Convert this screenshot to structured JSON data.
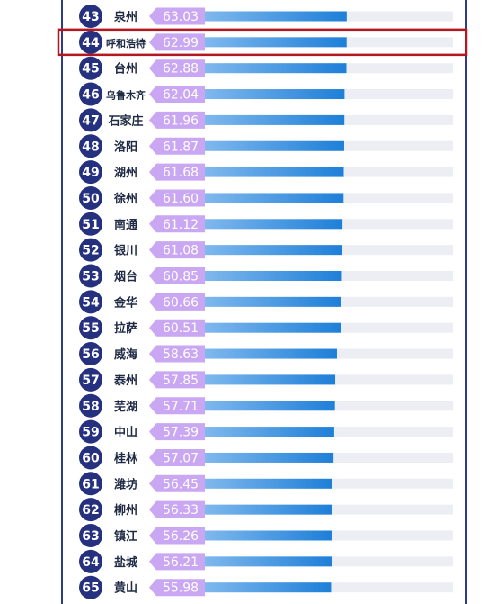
{
  "colors": {
    "frame": "#2e3a8c",
    "rank_badge": "#25307e",
    "value_tag": "#c9a7f2",
    "bar_start": "#7fb8ee",
    "bar_end": "#1e7fd8",
    "track": "#eceef3",
    "highlight_box": "#b3171f"
  },
  "highlight_rank": "44",
  "chart_data": {
    "type": "bar",
    "orientation": "horizontal",
    "title": "",
    "xlabel": "",
    "ylabel": "",
    "xlim": [
      0,
      100
    ],
    "rows": [
      {
        "rank": "43",
        "city": "泉州",
        "value": 63.03,
        "label": "63.03"
      },
      {
        "rank": "44",
        "city": "呼和浩特",
        "value": 62.99,
        "label": "62.99"
      },
      {
        "rank": "45",
        "city": "台州",
        "value": 62.88,
        "label": "62.88"
      },
      {
        "rank": "46",
        "city": "乌鲁木齐",
        "value": 62.04,
        "label": "62.04"
      },
      {
        "rank": "47",
        "city": "石家庄",
        "value": 61.96,
        "label": "61.96"
      },
      {
        "rank": "48",
        "city": "洛阳",
        "value": 61.87,
        "label": "61.87"
      },
      {
        "rank": "49",
        "city": "湖州",
        "value": 61.68,
        "label": "61.68"
      },
      {
        "rank": "50",
        "city": "徐州",
        "value": 61.6,
        "label": "61.60"
      },
      {
        "rank": "51",
        "city": "南通",
        "value": 61.12,
        "label": "61.12"
      },
      {
        "rank": "52",
        "city": "银川",
        "value": 61.08,
        "label": "61.08"
      },
      {
        "rank": "53",
        "city": "烟台",
        "value": 60.85,
        "label": "60.85"
      },
      {
        "rank": "54",
        "city": "金华",
        "value": 60.66,
        "label": "60.66"
      },
      {
        "rank": "55",
        "city": "拉萨",
        "value": 60.51,
        "label": "60.51"
      },
      {
        "rank": "56",
        "city": "威海",
        "value": 58.63,
        "label": "58.63"
      },
      {
        "rank": "57",
        "city": "泰州",
        "value": 57.85,
        "label": "57.85"
      },
      {
        "rank": "58",
        "city": "芜湖",
        "value": 57.71,
        "label": "57.71"
      },
      {
        "rank": "59",
        "city": "中山",
        "value": 57.39,
        "label": "57.39"
      },
      {
        "rank": "60",
        "city": "桂林",
        "value": 57.07,
        "label": "57.07"
      },
      {
        "rank": "61",
        "city": "潍坊",
        "value": 56.45,
        "label": "56.45"
      },
      {
        "rank": "62",
        "city": "柳州",
        "value": 56.33,
        "label": "56.33"
      },
      {
        "rank": "63",
        "city": "镇江",
        "value": 56.26,
        "label": "56.26"
      },
      {
        "rank": "64",
        "city": "盐城",
        "value": 56.21,
        "label": "56.21"
      },
      {
        "rank": "65",
        "city": "黄山",
        "value": 55.98,
        "label": "55.98"
      }
    ]
  }
}
